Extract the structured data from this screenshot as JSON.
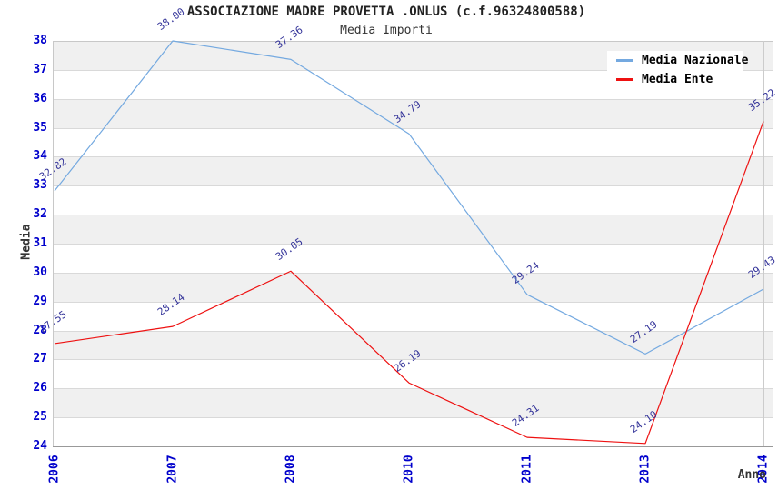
{
  "title": "ASSOCIAZIONE MADRE PROVETTA .ONLUS (c.f.96324800588)",
  "subtitle": "Media Importi",
  "chart_data": {
    "type": "line",
    "categories": [
      "2006",
      "2007",
      "2008",
      "2010",
      "2011",
      "2013",
      "2014"
    ],
    "series": [
      {
        "name": "Media Nazionale",
        "color": "#74a9e0",
        "values": [
          32.82,
          38.0,
          37.36,
          34.79,
          29.24,
          27.19,
          29.43
        ]
      },
      {
        "name": "Media Ente",
        "color": "#ee1111",
        "values": [
          27.55,
          28.14,
          30.05,
          26.19,
          24.31,
          24.1,
          35.22
        ]
      }
    ],
    "xlabel": "Anno",
    "ylabel": "Media",
    "ylim": [
      24,
      38
    ],
    "ytick_step": 1,
    "grid": "horizontal-bands",
    "band_color": "#f0f0f0",
    "tick_color": "#0000cc",
    "data_label_color": "#333399",
    "legend_position": "top-right"
  }
}
